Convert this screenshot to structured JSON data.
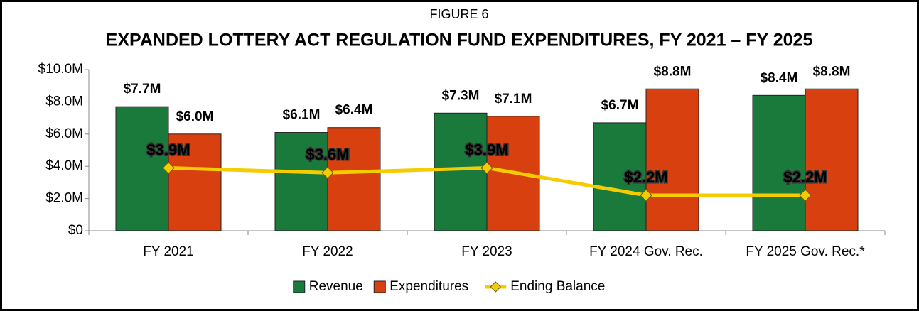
{
  "chart_data": {
    "type": "bar",
    "supertitle": "FIGURE 6",
    "title": "EXPANDED LOTTERY ACT REGULATION FUND EXPENDITURES, FY 2021 – FY 2025",
    "categories": [
      "FY 2021",
      "FY 2022",
      "FY 2023",
      "FY 2024 Gov. Rec.",
      "FY 2025 Gov. Rec.*"
    ],
    "series": [
      {
        "name": "Revenue",
        "color": "#1a7a3c",
        "label_color": "#1a7a3c",
        "values": [
          7.7,
          6.1,
          7.3,
          6.7,
          8.4
        ],
        "value_labels": [
          "$7.7M",
          "$6.1M",
          "$7.3M",
          "$6.7M",
          "$8.4M"
        ]
      },
      {
        "name": "Expenditures",
        "color": "#d9400f",
        "label_color": "#e0470f",
        "values": [
          6.0,
          6.4,
          7.1,
          8.8,
          8.8
        ],
        "value_labels": [
          "$6.0M",
          "$6.4M",
          "$7.1M",
          "$8.8M",
          "$8.8M"
        ]
      },
      {
        "name": "Ending Balance",
        "type": "line",
        "color": "#f5cc00",
        "label_color": "#ffffff",
        "values": [
          3.9,
          3.6,
          3.9,
          2.2,
          2.2
        ],
        "value_labels": [
          "$3.9M",
          "$3.6M",
          "$3.9M",
          "$2.2M",
          "$2.2M"
        ]
      }
    ],
    "ylim": [
      0,
      10
    ],
    "yticks": [
      {
        "value": 0,
        "label": "$0"
      },
      {
        "value": 2,
        "label": "$2.0M"
      },
      {
        "value": 4,
        "label": "$4.0M"
      },
      {
        "value": 6,
        "label": "$6.0M"
      },
      {
        "value": 8,
        "label": "$8.0M"
      },
      {
        "value": 10,
        "label": "$10.0M"
      }
    ],
    "grid": false,
    "legend": "bottom"
  }
}
